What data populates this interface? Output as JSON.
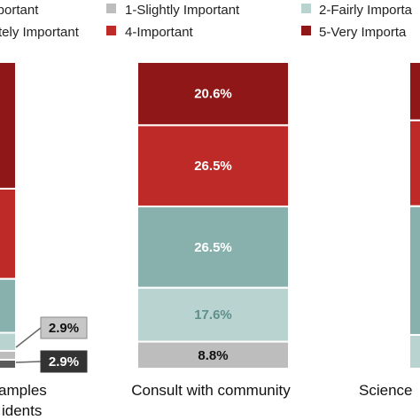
{
  "chart_data": {
    "type": "bar",
    "stacked": true,
    "percent": true,
    "legend_position": "top",
    "categories": [
      "amples\nidents",
      "Consult with community",
      "Science"
    ],
    "series": [
      {
        "name": "",
        "color": "#5a5a5a",
        "values": [
          2.9,
          0.0,
          null
        ]
      },
      {
        "name": "1-Slightly Important",
        "color": "#bdbdbd",
        "values": [
          2.9,
          8.8,
          null
        ]
      },
      {
        "name": "2-Fairly Importa",
        "color": "#b9d3d1",
        "values": [
          5.9,
          17.6,
          11.0
        ]
      },
      {
        "name": "tely Important",
        "color": "#ffffff",
        "values": [
          null,
          null,
          null
        ]
      },
      {
        "name": "",
        "color": "#88b1ad",
        "values": [
          17.6,
          26.5,
          42.0
        ]
      },
      {
        "name": "4-Important",
        "color": "#be2a27",
        "values": [
          29.4,
          26.5,
          28.0
        ]
      },
      {
        "name": "5-Very Importa",
        "color": "#8f1717",
        "values": [
          41.3,
          20.6,
          19.0
        ]
      }
    ],
    "callouts": [
      "2.9%",
      "2.9%"
    ],
    "segment_labels": {
      "Consult with community": [
        "8.8%",
        "17.6%",
        "26.5%",
        "26.5%",
        "20.6%"
      ]
    },
    "legend": [
      {
        "label": "Important",
        "color": "#5a5a5a"
      },
      {
        "label": "1-Slightly Important",
        "color": "#bdbdbd"
      },
      {
        "label": "2-Fairly Importa",
        "color": "#b9d3d1"
      },
      {
        "label": "tely Important",
        "color": "#88b1ad"
      },
      {
        "label": "4-Important",
        "color": "#be2a27"
      },
      {
        "label": "5-Very Importa",
        "color": "#8f1717"
      }
    ],
    "category_labels": {
      "left_line1": "amples",
      "left_line2": "idents",
      "middle": "Consult with community",
      "right": "Science"
    }
  }
}
